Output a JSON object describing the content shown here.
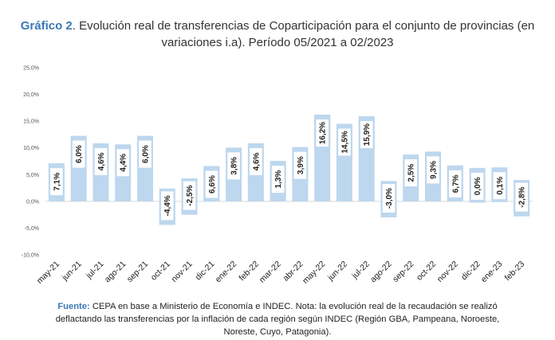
{
  "header": {
    "lead": "Gráfico 2",
    "line1": ". Evolución real de transferencias de Coparticipación para el conjunto de provincias (en",
    "line2": "variaciones i.a). Período 05/2021 a 02/2023"
  },
  "footer": {
    "lead": "Fuente:",
    "line1": " CEPA en base a Ministerio de Economía e INDEC. Nota: la evolución real de la recaudación se realizó",
    "line2": "deflactando las transferencias por la inflación de cada región según INDEC (Región GBA, Pampeana, Noroeste,",
    "line3": "Noreste, Cuyo, Patagonia)."
  },
  "colors": {
    "bar": "#bdd7ee",
    "label_box": "#ffffff",
    "grid": "#d9d9d9"
  },
  "chart_data": {
    "type": "bar",
    "categories": [
      "may-21",
      "jun-21",
      "jul-21",
      "ago-21",
      "sep-21",
      "oct-21",
      "nov-21",
      "dic-21",
      "ene-22",
      "feb-22",
      "mar-22",
      "abr-22",
      "may-22",
      "jun-22",
      "jul-22",
      "ago-22",
      "sep-22",
      "oct-22",
      "nov-22",
      "dic-22",
      "ene-23",
      "feb-23"
    ],
    "values": [
      7.1,
      6.0,
      4.6,
      4.4,
      6.0,
      -4.4,
      -2.5,
      6.6,
      3.8,
      4.6,
      1.3,
      3.9,
      16.2,
      14.5,
      15.9,
      -3.0,
      2.5,
      9.3,
      6.7,
      0.0,
      0.1,
      -2.8
    ],
    "data_labels": [
      "7,1%",
      "6,0%",
      "4,6%",
      "4,4%",
      "6,0%",
      "-4,4%",
      "-2,5%",
      "6,6%",
      "3,8%",
      "4,6%",
      "1,3%",
      "3,9%",
      "16,2%",
      "14,5%",
      "15,9%",
      "-3,0%",
      "2,5%",
      "9,3%",
      "6,7%",
      "0,0%",
      "0,1%",
      "-2,8%"
    ],
    "y_ticks": [
      25,
      20,
      15,
      10,
      5,
      0,
      -5,
      -10
    ],
    "y_tick_labels": [
      "25,0%",
      "20,0%",
      "15,0%",
      "10,0%",
      "5,0%",
      "0,0%",
      "-5,0%",
      "-10,0%"
    ],
    "ylim": [
      -10,
      25
    ],
    "grid": false
  }
}
